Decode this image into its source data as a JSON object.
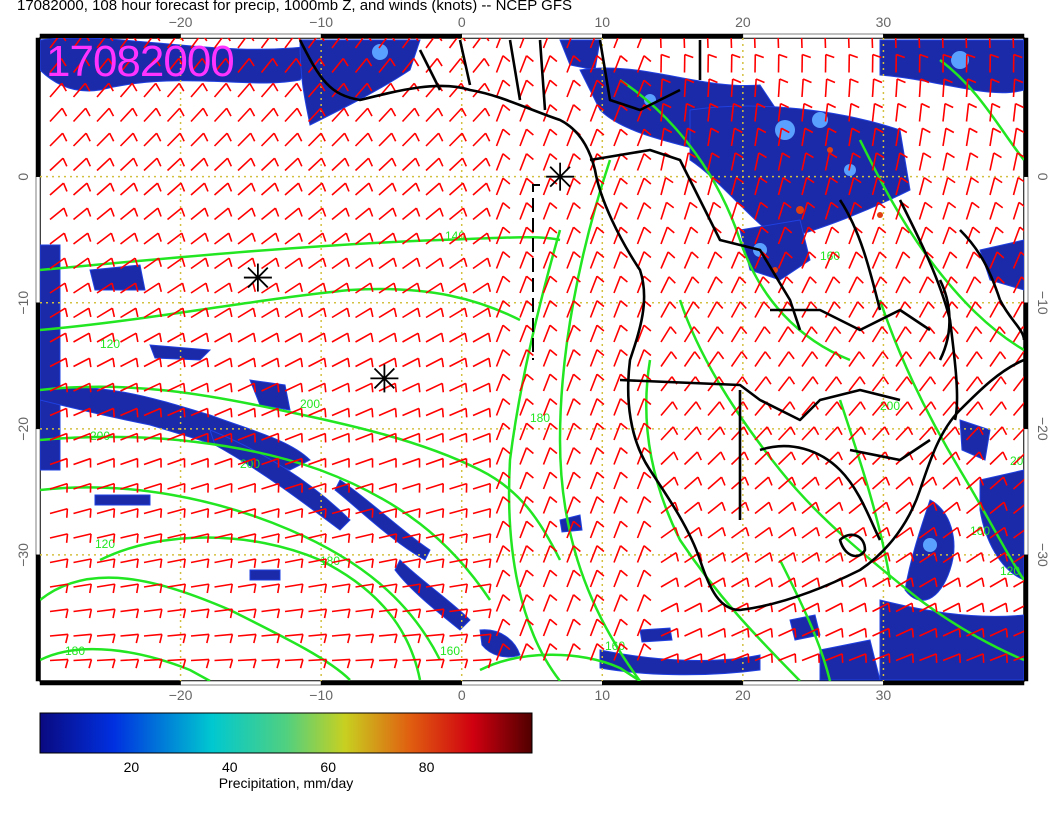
{
  "title": "17082000, 108 hour forecast for precip, 1000mb Z, and winds (knots) -- NCEP GFS",
  "stamp": "17082000",
  "map": {
    "lon_range": [
      -30,
      40
    ],
    "lat_range": [
      -40,
      11
    ],
    "lon_ticks": [
      -20,
      -10,
      0,
      10,
      20,
      30
    ],
    "lat_ticks": [
      0,
      -10,
      -20,
      -30
    ],
    "grid": true,
    "colors": {
      "land_outline": "#000000",
      "contours": "#22e622",
      "wind_barbs": "#ff0000",
      "grid": "#d4c040"
    },
    "contour_labels": [
      "140",
      "120",
      "200",
      "200",
      "200",
      "180",
      "180",
      "120",
      "160",
      "160",
      "200",
      "180",
      "160",
      "200",
      "160",
      "120"
    ],
    "markers": [
      {
        "type": "asterisk",
        "lon": 7,
        "lat": 0
      },
      {
        "type": "asterisk",
        "lon": -14.5,
        "lat": -8
      },
      {
        "type": "asterisk",
        "lon": -5.5,
        "lat": -16
      }
    ]
  },
  "colorbar": {
    "ticks": [
      "20",
      "40",
      "60",
      "80"
    ],
    "range": [
      0,
      100
    ],
    "label": "Precipitation, mm/day"
  }
}
